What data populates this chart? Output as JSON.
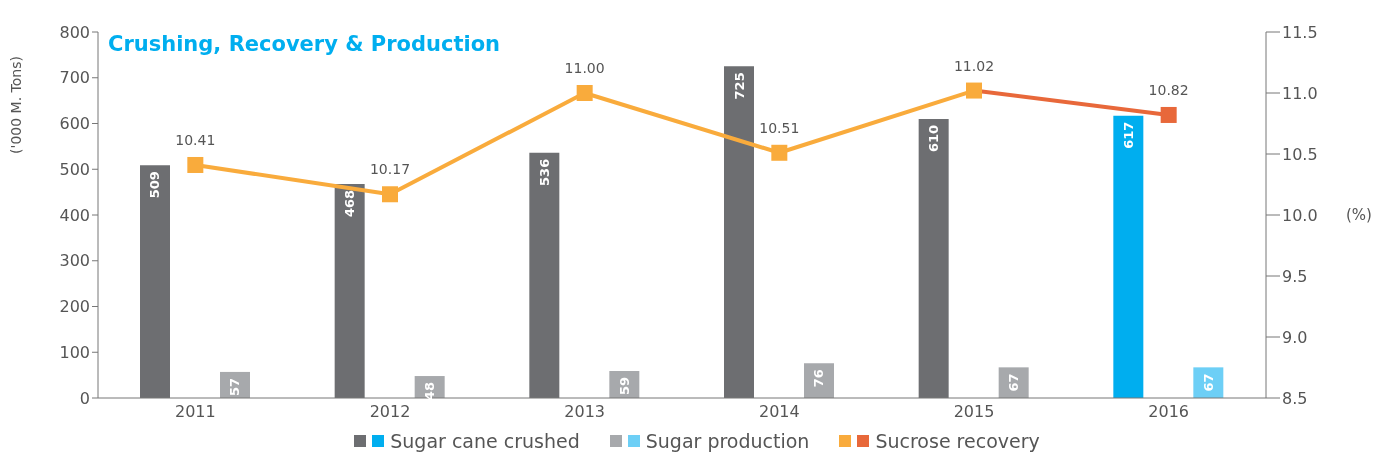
{
  "chart_data": {
    "type": "bar",
    "title": "Crushing, Recovery & Production",
    "ylabel": "('000 M. Tons)",
    "y2label": "(%)",
    "categories": [
      "2011",
      "2012",
      "2013",
      "2014",
      "2015",
      "2016"
    ],
    "series": [
      {
        "name": "Sugar cane crushed",
        "colors": [
          "#6d6e71",
          "#6d6e71",
          "#6d6e71",
          "#6d6e71",
          "#6d6e71",
          "#00aeef"
        ],
        "values": [
          509,
          468,
          536,
          725,
          610,
          617
        ],
        "value_labels": [
          "509",
          "468",
          "536",
          "725",
          "610",
          "617"
        ]
      },
      {
        "name": "Sugar production",
        "colors": [
          "#a7a9ac",
          "#a7a9ac",
          "#a7a9ac",
          "#a7a9ac",
          "#a7a9ac",
          "#6dcff6"
        ],
        "values": [
          57,
          48,
          59,
          76,
          67,
          67
        ],
        "value_labels": [
          "57",
          "48",
          "59",
          "76",
          "67",
          "67"
        ]
      },
      {
        "name": "Sucrose recovery",
        "type": "line",
        "axis": "y2",
        "colors": [
          "#f9ab3c",
          "#f9ab3c",
          "#f9ab3c",
          "#f9ab3c",
          "#f9ab3c",
          "#e8683a"
        ],
        "values": [
          10.41,
          10.17,
          11.0,
          10.51,
          11.02,
          10.82
        ],
        "value_labels": [
          "10.41",
          "10.17",
          "11.00",
          "10.51",
          "11.02",
          "10.82"
        ]
      }
    ],
    "ylim": [
      0,
      800
    ],
    "yticks": [
      0,
      100,
      200,
      300,
      400,
      500,
      600,
      700,
      800
    ],
    "y2lim": [
      8.5,
      11.5
    ],
    "y2ticks": [
      8.5,
      {
        "value": 9,
        "label": "9.0"
      },
      9.5,
      {
        "value": 10,
        "label": "10.0"
      },
      10.5,
      {
        "value": 11,
        "label": "11.0"
      },
      11.5
    ],
    "marker": "square",
    "grid": false,
    "legend": "bottom"
  }
}
